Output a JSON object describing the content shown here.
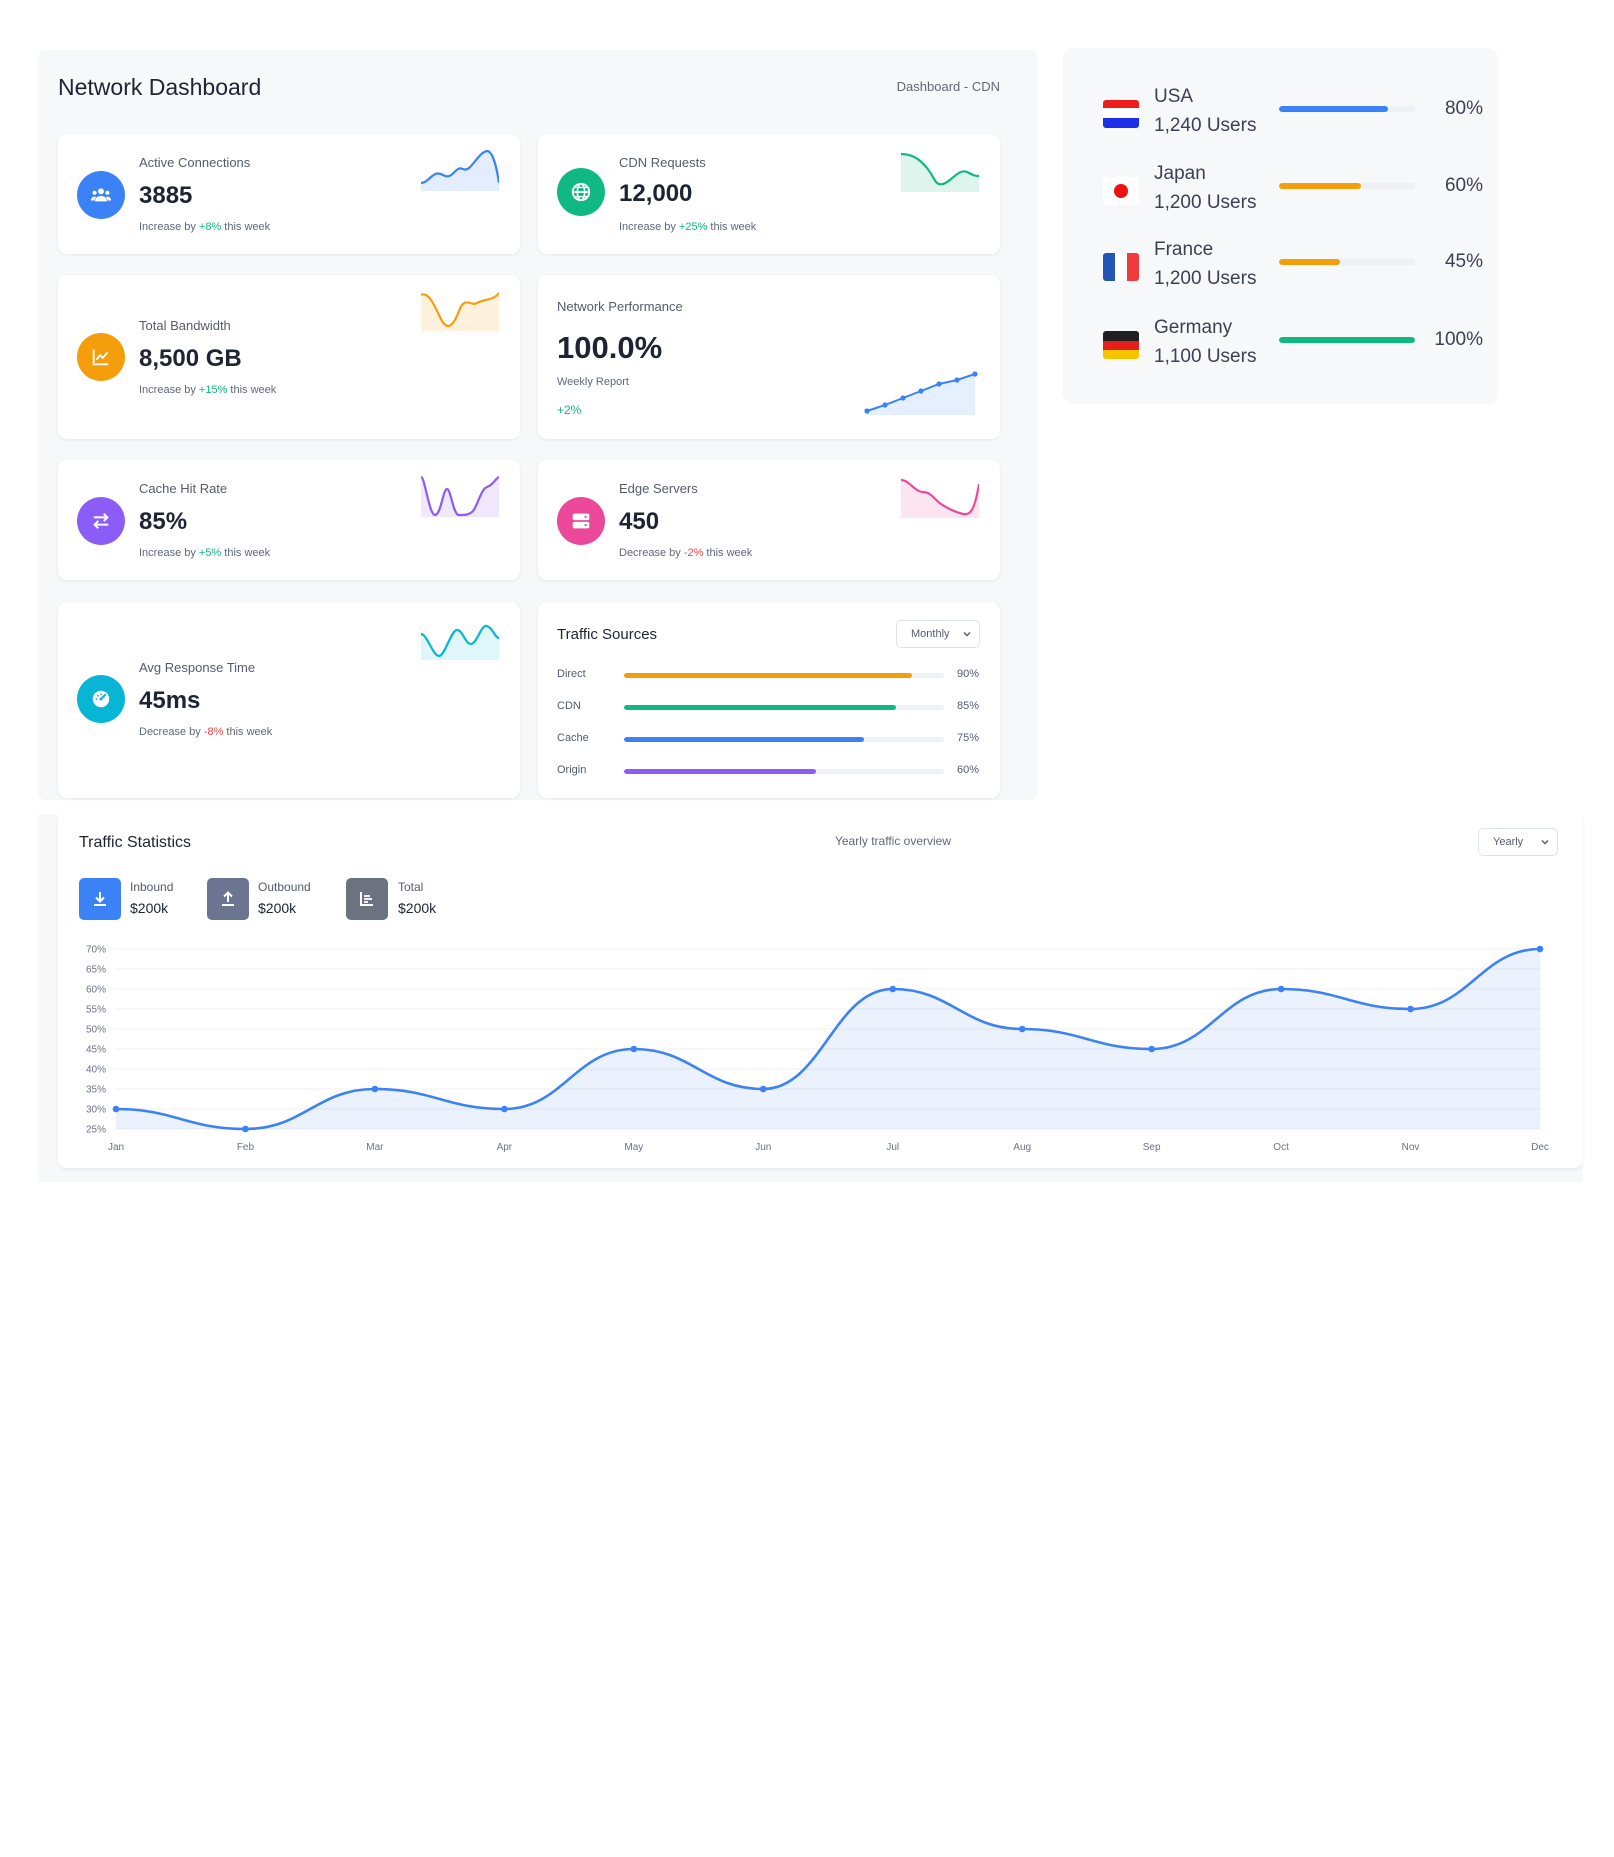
{
  "header": {
    "title": "Network Dashboard",
    "breadcrumb": "Dashboard - CDN"
  },
  "stats": [
    {
      "label": "Active Connections",
      "value": "3885",
      "note_prefix": "Increase by ",
      "note_delta": "+8%",
      "note_suffix": " this week",
      "icon": "users-icon",
      "color": "#3b82f6",
      "trend": "up"
    },
    {
      "label": "CDN Requests",
      "value": "12,000",
      "note_prefix": "Increase by ",
      "note_delta": "+25%",
      "note_suffix": " this week",
      "icon": "globe-icon",
      "color": "#10b981",
      "trend": "up"
    },
    {
      "label": "Total Bandwidth",
      "value": "8,500 GB",
      "note_prefix": "Increase by ",
      "note_delta": "+15%",
      "note_suffix": " this week",
      "icon": "chart-line-icon",
      "color": "#f59e0b",
      "trend": "up"
    },
    {
      "label": "Cache Hit Rate",
      "value": "85%",
      "note_prefix": "Increase by ",
      "note_delta": "+5%",
      "note_suffix": " this week",
      "icon": "swap-arrows-icon",
      "color": "#8b5cf6",
      "trend": "up"
    },
    {
      "label": "Edge Servers",
      "value": "450",
      "note_prefix": "Decrease by ",
      "note_delta": "-2%",
      "note_suffix": " this week",
      "icon": "server-icon",
      "color": "#ec4899",
      "trend": "down"
    },
    {
      "label": "Avg Response Time",
      "value": "45ms",
      "note_prefix": "Decrease by ",
      "note_delta": "-8%",
      "note_suffix": " this week",
      "icon": "speedometer-icon",
      "color": "#06b6d4",
      "trend": "down"
    }
  ],
  "performance": {
    "label": "Network Performance",
    "value": "100.0%",
    "sublabel": "Weekly Report",
    "delta": "+2%",
    "color": "#3b82f6"
  },
  "traffic_sources": {
    "title": "Traffic Sources",
    "filter": "Monthly",
    "items": [
      {
        "name": "Direct",
        "percent": 90,
        "label": "90%",
        "color": "#f59e0b"
      },
      {
        "name": "CDN",
        "percent": 85,
        "label": "85%",
        "color": "#10b981"
      },
      {
        "name": "Cache",
        "percent": 75,
        "label": "75%",
        "color": "#3b82f6"
      },
      {
        "name": "Origin",
        "percent": 60,
        "label": "60%",
        "color": "#8b5cf6"
      }
    ]
  },
  "countries": [
    {
      "name": "USA",
      "users": "1,240 Users",
      "percent": 80,
      "label": "80%",
      "color": "#3b82f6",
      "flag": "usa-flag-icon"
    },
    {
      "name": "Japan",
      "users": "1,200 Users",
      "percent": 60,
      "label": "60%",
      "color": "#f59e0b",
      "flag": "japan-flag-icon"
    },
    {
      "name": "France",
      "users": "1,200 Users",
      "percent": 45,
      "label": "45%",
      "color": "#f59e0b",
      "flag": "france-flag-icon"
    },
    {
      "name": "Germany",
      "users": "1,100 Users",
      "percent": 100,
      "label": "100%",
      "color": "#10b981",
      "flag": "germany-flag-icon"
    }
  ],
  "traffic_stats": {
    "title": "Traffic Statistics",
    "subtitle": "Yearly traffic overview",
    "filter": "Yearly",
    "legend": [
      {
        "label": "Inbound",
        "value": "$200k",
        "icon": "download-icon",
        "color": "#3b82f6"
      },
      {
        "label": "Outbound",
        "value": "$200k",
        "icon": "upload-icon",
        "color": "#6b7591"
      },
      {
        "label": "Total",
        "value": "$200k",
        "icon": "bar-chart-icon",
        "color": "#6b7280"
      }
    ]
  },
  "chart_data": {
    "type": "area",
    "title": "",
    "xlabel": "",
    "ylabel": "",
    "categories": [
      "Jan",
      "Feb",
      "Mar",
      "Apr",
      "May",
      "Jun",
      "Jul",
      "Aug",
      "Sep",
      "Oct",
      "Nov",
      "Dec"
    ],
    "values": [
      30,
      25,
      35,
      30,
      45,
      35,
      60,
      50,
      45,
      60,
      55,
      70
    ],
    "yticks": [
      "25%",
      "30%",
      "35%",
      "40%",
      "45%",
      "50%",
      "55%",
      "60%",
      "65%",
      "70%"
    ],
    "ylim": [
      25,
      70
    ],
    "grid": true,
    "color": "#3b82f6"
  }
}
